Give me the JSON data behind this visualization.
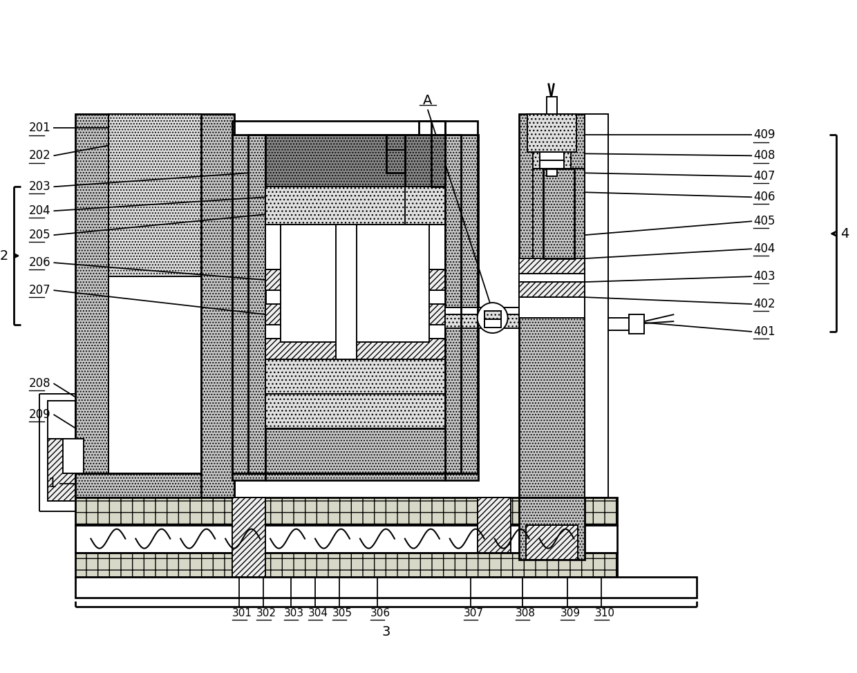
{
  "bg_color": "#ffffff",
  "lc": "#000000",
  "concrete_fc": "#c8c8c8",
  "dotted_fc": "#e0e0e0",
  "plus_fc": "#d8d8c8",
  "hatch_fc": "#f0f0f0",
  "labels_left": [
    "201",
    "202",
    "203",
    "204",
    "205",
    "206",
    "207",
    "208",
    "209"
  ],
  "labels_right": [
    "409",
    "408",
    "407",
    "406",
    "405",
    "404",
    "403",
    "402",
    "401"
  ],
  "labels_bottom": [
    "301",
    "302",
    "303",
    "304",
    "305",
    "306",
    "307",
    "308",
    "309",
    "310"
  ],
  "label_2": "2",
  "label_3": "3",
  "label_4": "4",
  "label_A": "A",
  "label_1": "1"
}
